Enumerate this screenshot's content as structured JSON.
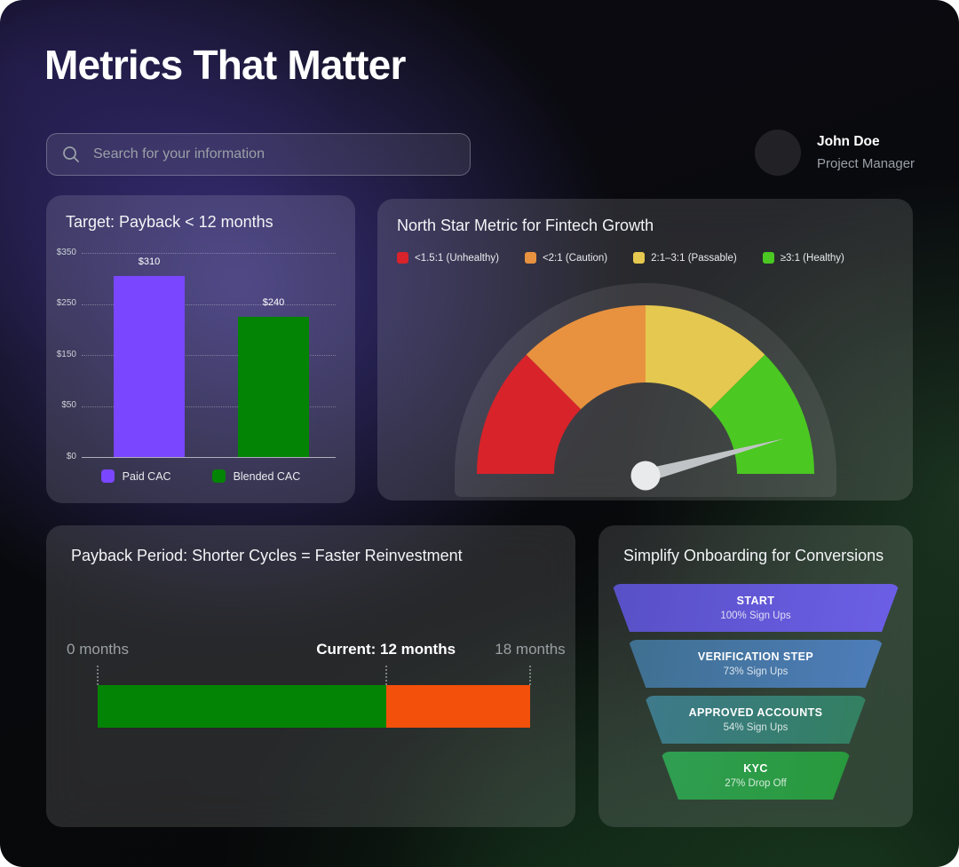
{
  "page": {
    "title": "Metrics That Matter"
  },
  "search": {
    "placeholder": "Search for your information"
  },
  "user": {
    "name": "John Doe",
    "role": "Project Manager"
  },
  "chart_data": [
    {
      "type": "bar",
      "title": "Target: Payback  < 12 months",
      "categories": [
        "Paid CAC",
        "Blended CAC"
      ],
      "values": [
        310,
        240
      ],
      "value_labels": [
        "$310",
        "$240"
      ],
      "colors": [
        "#7A46FF",
        "#048404"
      ],
      "yticks": [
        "$350",
        "$250",
        "$150",
        "$50",
        "$0"
      ],
      "ylim": [
        0,
        350
      ],
      "legend": [
        "Paid CAC",
        "Blended CAC"
      ],
      "grid": "dotted-horizontal",
      "legend_position": "bottom"
    },
    {
      "type": "gauge",
      "title": "North Star Metric for Fintech Growth",
      "segments": [
        {
          "label": "<1.5:1 (Unhealthy)",
          "color": "#D8232A"
        },
        {
          "label": "<2:1 (Caution)",
          "color": "#E8923F"
        },
        {
          "label": "2:1–3:1 (Passable)",
          "color": "#E5C84F"
        },
        {
          "label": "≥3:1 (Healthy)",
          "color": "#4BC822"
        }
      ],
      "needle_angle_deg": 15,
      "needle_zone": "≥3:1 (Healthy)",
      "legend_position": "top"
    },
    {
      "type": "bar",
      "orientation": "horizontal-timeline",
      "title": "Payback Period: Shorter Cycles = Faster Reinvestment",
      "xlim": [
        0,
        18
      ],
      "markers": [
        {
          "label": "0 months",
          "month": 0,
          "emphasis": false
        },
        {
          "label": "Current: 12 months",
          "month": 12,
          "emphasis": true
        },
        {
          "label": "18 months",
          "month": 18,
          "emphasis": false
        }
      ],
      "segments": [
        {
          "from": 0,
          "to": 12,
          "color": "#048404"
        },
        {
          "from": 12,
          "to": 18,
          "color": "#F2500B"
        }
      ]
    },
    {
      "type": "funnel",
      "title": "Simplify Onboarding for Conversions",
      "steps": [
        {
          "label": "START",
          "sublabel": "100% Sign Ups",
          "colors": [
            "#5850C6",
            "#6C5FE6"
          ]
        },
        {
          "label": "VERIFICATION STEP",
          "sublabel": "73% Sign Ups",
          "colors": [
            "#3F7090",
            "#4E7DBB"
          ]
        },
        {
          "label": "APPROVED ACCOUNTS",
          "sublabel": "54% Sign Ups",
          "colors": [
            "#3E7A8C",
            "#32805F"
          ]
        },
        {
          "label": "KYC",
          "sublabel": "27% Drop Off",
          "colors": [
            "#309E52",
            "#28993C"
          ]
        }
      ]
    }
  ]
}
